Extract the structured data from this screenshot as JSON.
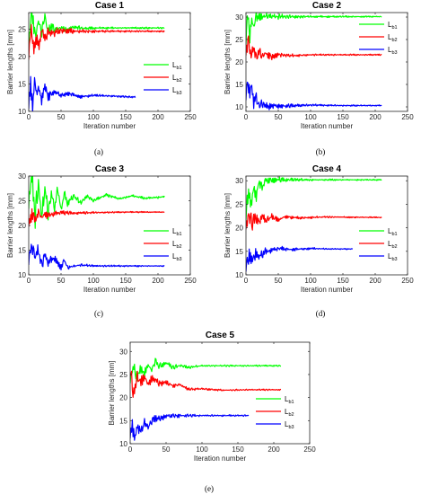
{
  "chart_data": [
    {
      "type": "line",
      "panel_label": "(a)",
      "title": "Case 1",
      "xlabel": "Iteration number",
      "ylabel": "Barrier lengths [mm]",
      "xlim": [
        0,
        250
      ],
      "ylim": [
        10,
        28
      ],
      "xticks": [
        0,
        50,
        100,
        150,
        200,
        250
      ],
      "yticks": [
        10,
        15,
        20,
        25
      ],
      "legend_position": "center-right",
      "series": [
        {
          "name": "L",
          "sub": "b1",
          "color": "#00ff00",
          "noise": 1.0,
          "seed": 11,
          "points": [
            [
              0,
              22.5
            ],
            [
              5,
              28.5
            ],
            [
              10,
              23.5
            ],
            [
              15,
              26.5
            ],
            [
              20,
              24.5
            ],
            [
              25,
              27.5
            ],
            [
              30,
              24.2
            ],
            [
              35,
              25.8
            ],
            [
              40,
              24.8
            ],
            [
              50,
              25.3
            ],
            [
              60,
              24.9
            ],
            [
              70,
              25.4
            ],
            [
              85,
              25.1
            ],
            [
              110,
              25.2
            ],
            [
              150,
              25.2
            ],
            [
              210,
              25.2
            ]
          ]
        },
        {
          "name": "L",
          "sub": "b2",
          "color": "#ff0000",
          "noise": 1.0,
          "seed": 23,
          "points": [
            [
              0,
              20.5
            ],
            [
              4,
              25.0
            ],
            [
              8,
              21.5
            ],
            [
              12,
              23.5
            ],
            [
              16,
              22.0
            ],
            [
              20,
              24.8
            ],
            [
              25,
              23.2
            ],
            [
              30,
              24.5
            ],
            [
              40,
              24.3
            ],
            [
              50,
              24.8
            ],
            [
              70,
              24.6
            ],
            [
              100,
              24.6
            ],
            [
              150,
              24.6
            ],
            [
              210,
              24.6
            ]
          ]
        },
        {
          "name": "L",
          "sub": "b3",
          "color": "#0000ff",
          "noise": 1.0,
          "seed": 37,
          "points": [
            [
              0,
              11.5
            ],
            [
              3,
              15.5
            ],
            [
              6,
              10.5
            ],
            [
              9,
              15.8
            ],
            [
              12,
              13.0
            ],
            [
              15,
              14.5
            ],
            [
              20,
              12.2
            ],
            [
              25,
              14.8
            ],
            [
              30,
              12.8
            ],
            [
              40,
              13.6
            ],
            [
              50,
              12.9
            ],
            [
              60,
              13.3
            ],
            [
              80,
              12.7
            ],
            [
              100,
              12.9
            ],
            [
              130,
              12.8
            ],
            [
              165,
              12.6
            ]
          ]
        }
      ]
    },
    {
      "type": "line",
      "panel_label": "(b)",
      "title": "Case 2",
      "xlabel": "Iteration number",
      "ylabel": "Barrier lengths [mm]",
      "xlim": [
        0,
        250
      ],
      "ylim": [
        9,
        31
      ],
      "xticks": [
        0,
        50,
        100,
        150,
        200,
        250
      ],
      "yticks": [
        10,
        15,
        20,
        25,
        30
      ],
      "legend_position": "center-right",
      "series": [
        {
          "name": "L",
          "sub": "b1",
          "color": "#00ff00",
          "noise": 1.0,
          "seed": 41,
          "points": [
            [
              0,
              25.0
            ],
            [
              3,
              30.5
            ],
            [
              6,
              26.0
            ],
            [
              9,
              29.5
            ],
            [
              12,
              27.5
            ],
            [
              15,
              30.0
            ],
            [
              20,
              29.8
            ],
            [
              30,
              30.2
            ],
            [
              50,
              30.1
            ],
            [
              100,
              30.1
            ],
            [
              210,
              30.1
            ]
          ]
        },
        {
          "name": "L",
          "sub": "b2",
          "color": "#ff0000",
          "noise": 1.0,
          "seed": 53,
          "points": [
            [
              0,
              22.5
            ],
            [
              4,
              25.0
            ],
            [
              8,
              21.0
            ],
            [
              12,
              23.5
            ],
            [
              16,
              20.8
            ],
            [
              20,
              22.5
            ],
            [
              25,
              21.2
            ],
            [
              30,
              22.0
            ],
            [
              40,
              21.2
            ],
            [
              50,
              21.7
            ],
            [
              70,
              21.4
            ],
            [
              100,
              21.6
            ],
            [
              150,
              21.6
            ],
            [
              210,
              21.6
            ]
          ]
        },
        {
          "name": "L",
          "sub": "b3",
          "color": "#0000ff",
          "noise": 1.0,
          "seed": 67,
          "points": [
            [
              0,
              12.5
            ],
            [
              3,
              15.8
            ],
            [
              6,
              13.0
            ],
            [
              9,
              15.0
            ],
            [
              12,
              11.0
            ],
            [
              15,
              12.2
            ],
            [
              20,
              10.2
            ],
            [
              25,
              10.8
            ],
            [
              30,
              10.1
            ],
            [
              40,
              10.3
            ],
            [
              60,
              10.2
            ],
            [
              100,
              10.4
            ],
            [
              150,
              10.3
            ],
            [
              210,
              10.3
            ]
          ]
        }
      ]
    },
    {
      "type": "line",
      "panel_label": "(c)",
      "title": "Case 3",
      "xlabel": "Iteration number",
      "ylabel": "Barrier lengths [mm]",
      "xlim": [
        0,
        250
      ],
      "ylim": [
        10,
        30
      ],
      "xticks": [
        0,
        50,
        100,
        150,
        200,
        250
      ],
      "yticks": [
        10,
        15,
        20,
        25,
        30
      ],
      "legend_position": "center-right",
      "series": [
        {
          "name": "L",
          "sub": "b1",
          "color": "#00ff00",
          "noise": 1.6,
          "seed": 71,
          "points": [
            [
              0,
              25.0
            ],
            [
              5,
              29.5
            ],
            [
              10,
              22.0
            ],
            [
              15,
              28.5
            ],
            [
              20,
              21.5
            ],
            [
              25,
              27.5
            ],
            [
              30,
              22.5
            ],
            [
              35,
              26.5
            ],
            [
              40,
              23.5
            ],
            [
              45,
              27.5
            ],
            [
              50,
              23.0
            ],
            [
              55,
              26.5
            ],
            [
              60,
              24.5
            ],
            [
              70,
              26.0
            ],
            [
              80,
              24.5
            ],
            [
              90,
              26.0
            ],
            [
              100,
              25.0
            ],
            [
              120,
              26.2
            ],
            [
              140,
              25.4
            ],
            [
              160,
              26.0
            ],
            [
              180,
              25.5
            ],
            [
              210,
              25.8
            ]
          ]
        },
        {
          "name": "L",
          "sub": "b3",
          "color": "#0000ff",
          "noise": 1.0,
          "seed": 83,
          "points": [
            [
              0,
              13.0
            ],
            [
              5,
              16.0
            ],
            [
              10,
              13.5
            ],
            [
              15,
              15.0
            ],
            [
              20,
              12.0
            ],
            [
              25,
              14.0
            ],
            [
              30,
              12.5
            ],
            [
              40,
              13.5
            ],
            [
              50,
              11.5
            ],
            [
              55,
              13.0
            ],
            [
              60,
              11.5
            ],
            [
              80,
              12.0
            ],
            [
              100,
              11.8
            ],
            [
              150,
              11.8
            ],
            [
              210,
              11.8
            ]
          ]
        },
        {
          "name": "L",
          "sub": "b2",
          "color": "#ff0000",
          "noise": 0.8,
          "seed": 97,
          "points": [
            [
              0,
              20.5
            ],
            [
              5,
              22.5
            ],
            [
              10,
              21.0
            ],
            [
              15,
              22.8
            ],
            [
              20,
              21.5
            ],
            [
              25,
              22.5
            ],
            [
              30,
              22.0
            ],
            [
              40,
              22.4
            ],
            [
              50,
              22.6
            ],
            [
              70,
              22.5
            ],
            [
              100,
              22.6
            ],
            [
              150,
              22.7
            ],
            [
              210,
              22.7
            ]
          ]
        }
      ]
    },
    {
      "type": "line",
      "panel_label": "(d)",
      "title": "Case 4",
      "xlabel": "Iteration number",
      "ylabel": "Barrier lengths [mm]",
      "xlim": [
        0,
        250
      ],
      "ylim": [
        10,
        31
      ],
      "xticks": [
        0,
        50,
        100,
        150,
        200,
        250
      ],
      "yticks": [
        10,
        15,
        20,
        25,
        30
      ],
      "legend_position": "center-right",
      "series": [
        {
          "name": "L",
          "sub": "b1",
          "color": "#00ff00",
          "noise": 1.0,
          "seed": 101,
          "points": [
            [
              0,
              22.5
            ],
            [
              4,
              27.5
            ],
            [
              8,
              24.5
            ],
            [
              12,
              29.0
            ],
            [
              16,
              26.5
            ],
            [
              20,
              30.0
            ],
            [
              25,
              28.5
            ],
            [
              30,
              30.1
            ],
            [
              40,
              30.2
            ],
            [
              80,
              30.2
            ],
            [
              210,
              30.2
            ]
          ]
        },
        {
          "name": "L",
          "sub": "b2",
          "color": "#ff0000",
          "noise": 0.9,
          "seed": 113,
          "points": [
            [
              0,
              20.5
            ],
            [
              5,
              22.8
            ],
            [
              10,
              20.8
            ],
            [
              15,
              22.5
            ],
            [
              20,
              21.2
            ],
            [
              25,
              22.5
            ],
            [
              30,
              21.5
            ],
            [
              40,
              22.3
            ],
            [
              50,
              21.6
            ],
            [
              60,
              22.4
            ],
            [
              80,
              22.1
            ],
            [
              120,
              22.3
            ],
            [
              210,
              22.2
            ]
          ]
        },
        {
          "name": "L",
          "sub": "b3",
          "color": "#0000ff",
          "noise": 0.9,
          "seed": 127,
          "points": [
            [
              0,
              11.5
            ],
            [
              5,
              14.5
            ],
            [
              10,
              13.0
            ],
            [
              15,
              14.8
            ],
            [
              20,
              13.8
            ],
            [
              30,
              14.9
            ],
            [
              40,
              15.3
            ],
            [
              50,
              15.6
            ],
            [
              70,
              15.4
            ],
            [
              100,
              15.6
            ],
            [
              130,
              15.5
            ],
            [
              165,
              15.5
            ]
          ]
        }
      ]
    },
    {
      "type": "line",
      "panel_label": "(e)",
      "title": "Case 5",
      "xlabel": "Iteration number",
      "ylabel": "Barrier lengths [mm]",
      "xlim": [
        0,
        250
      ],
      "ylim": [
        10,
        32
      ],
      "xticks": [
        0,
        50,
        100,
        150,
        200,
        250
      ],
      "yticks": [
        10,
        15,
        20,
        25,
        30
      ],
      "legend_position": "lower-right",
      "series": [
        {
          "name": "L",
          "sub": "b1",
          "color": "#00ff00",
          "noise": 1.0,
          "seed": 131,
          "points": [
            [
              0,
              24.0
            ],
            [
              5,
              26.5
            ],
            [
              10,
              24.5
            ],
            [
              15,
              26.0
            ],
            [
              20,
              25.5
            ],
            [
              25,
              27.0
            ],
            [
              30,
              26.0
            ],
            [
              35,
              28.0
            ],
            [
              40,
              26.8
            ],
            [
              50,
              27.5
            ],
            [
              60,
              26.5
            ],
            [
              70,
              27.0
            ],
            [
              80,
              26.5
            ],
            [
              100,
              26.9
            ],
            [
              150,
              26.9
            ],
            [
              210,
              26.9
            ]
          ]
        },
        {
          "name": "L",
          "sub": "b2",
          "color": "#ff0000",
          "noise": 1.0,
          "seed": 139,
          "points": [
            [
              0,
              25.5
            ],
            [
              5,
              21.0
            ],
            [
              10,
              24.5
            ],
            [
              15,
              23.0
            ],
            [
              20,
              24.5
            ],
            [
              25,
              23.0
            ],
            [
              30,
              24.3
            ],
            [
              40,
              23.2
            ],
            [
              50,
              23.2
            ],
            [
              60,
              22.6
            ],
            [
              70,
              22.8
            ],
            [
              80,
              21.8
            ],
            [
              100,
              21.9
            ],
            [
              130,
              21.6
            ],
            [
              170,
              21.7
            ],
            [
              210,
              21.7
            ]
          ]
        },
        {
          "name": "L",
          "sub": "b3",
          "color": "#0000ff",
          "noise": 1.0,
          "seed": 151,
          "points": [
            [
              0,
              12.0
            ],
            [
              3,
              14.5
            ],
            [
              6,
              11.0
            ],
            [
              10,
              14.0
            ],
            [
              15,
              12.5
            ],
            [
              20,
              14.5
            ],
            [
              25,
              13.5
            ],
            [
              30,
              15.0
            ],
            [
              40,
              15.5
            ],
            [
              50,
              16.0
            ],
            [
              60,
              16.1
            ],
            [
              80,
              16.1
            ],
            [
              120,
              16.1
            ],
            [
              165,
              16.1
            ]
          ]
        }
      ]
    }
  ]
}
